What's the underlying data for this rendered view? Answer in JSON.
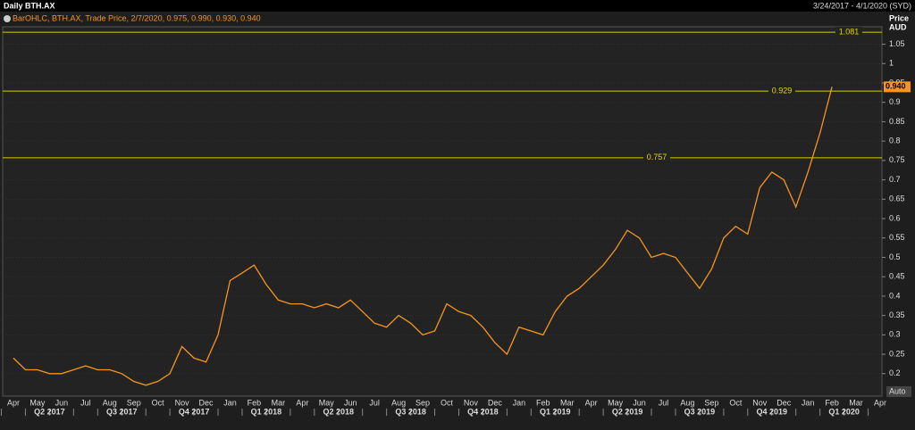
{
  "chart_data": {
    "type": "line",
    "title": "Daily BTH.AX",
    "date_range": "3/24/2017 - 4/1/2020 (SYD)",
    "legend_text": "BarOHLC, BTH.AX, Trade Price, 2/7/2020, 0.975, 0.990, 0.930, 0.940",
    "y_axis_title": "Price",
    "y_axis_unit": "AUD",
    "scale_mode": "Auto",
    "categories": [
      "Apr",
      null,
      "May",
      null,
      "Jun",
      null,
      "Jul",
      null,
      "Aug",
      null,
      "Sep",
      null,
      "Oct",
      null,
      "Nov",
      null,
      "Dec",
      null,
      "Jan",
      null,
      "Feb",
      null,
      "Mar",
      null,
      "Apr",
      null,
      "May",
      null,
      "Jun",
      null,
      "Jul",
      null,
      "Aug",
      null,
      "Sep",
      null,
      "Oct",
      null,
      "Nov",
      null,
      "Dec",
      null,
      "Jan",
      null,
      "Feb",
      null,
      "Mar",
      null,
      "Apr",
      null,
      "May",
      null,
      "Jun",
      null,
      "Jul",
      null,
      "Aug",
      null,
      "Sep",
      null,
      "Oct",
      null,
      "Nov",
      null,
      "Dec",
      null,
      "Jan",
      null,
      "Feb",
      null,
      "Mar",
      null,
      "Apr"
    ],
    "quarters": [
      "Q2 2017",
      "Q3 2017",
      "Q4 2017",
      "Q1 2018",
      "Q2 2018",
      "Q3 2018",
      "Q4 2018",
      "Q1 2019",
      "Q2 2019",
      "Q3 2019",
      "Q4 2019",
      "Q1 2020"
    ],
    "series": [
      {
        "name": "BTH.AX",
        "color": "#f7941d",
        "values": [
          0.24,
          0.21,
          0.21,
          0.2,
          0.2,
          0.21,
          0.22,
          0.21,
          0.21,
          0.2,
          0.18,
          0.17,
          0.18,
          0.2,
          0.27,
          0.24,
          0.23,
          0.3,
          0.44,
          0.46,
          0.48,
          0.43,
          0.39,
          0.38,
          0.38,
          0.37,
          0.38,
          0.37,
          0.39,
          0.36,
          0.33,
          0.32,
          0.35,
          0.33,
          0.3,
          0.31,
          0.38,
          0.36,
          0.35,
          0.32,
          0.28,
          0.25,
          0.32,
          0.31,
          0.3,
          0.36,
          0.4,
          0.42,
          0.45,
          0.48,
          0.52,
          0.57,
          0.55,
          0.5,
          0.51,
          0.5,
          0.46,
          0.42,
          0.47,
          0.55,
          0.58,
          0.56,
          0.68,
          0.72,
          0.7,
          0.63,
          0.72,
          0.82,
          0.94,
          null,
          null,
          null,
          null
        ]
      }
    ],
    "reference_lines": [
      1.081,
      0.929,
      0.757
    ],
    "last_price": 0.94,
    "last_price_label": "0.940",
    "ylim": [
      0.142,
      1.095
    ],
    "yticks": [
      0.2,
      0.25,
      0.3,
      0.35,
      0.4,
      0.45,
      0.5,
      0.55,
      0.6,
      0.65,
      0.7,
      0.75,
      0.8,
      0.85,
      0.9,
      0.95,
      1,
      1.05
    ],
    "grid": true
  }
}
